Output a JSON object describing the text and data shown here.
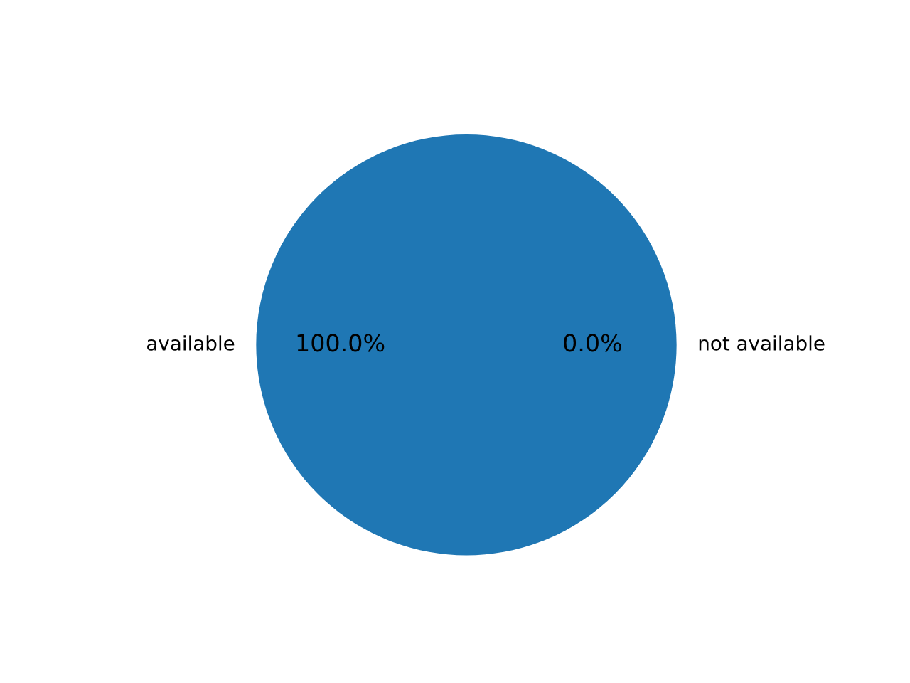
{
  "chart_data": {
    "type": "pie",
    "categories": [
      "available",
      "not available"
    ],
    "values": [
      100,
      0
    ],
    "colors": [
      "#1f77b4",
      "#ff7f0e"
    ],
    "value_labels": [
      "100.0%",
      "0.0%"
    ]
  }
}
